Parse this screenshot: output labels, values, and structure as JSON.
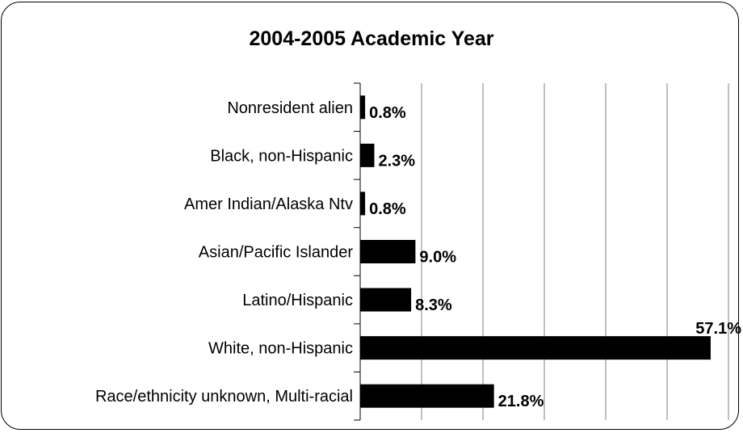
{
  "chart_data": {
    "type": "bar",
    "orientation": "horizontal",
    "title": "2004-2005 Academic Year",
    "categories": [
      "Nonresident alien",
      "Black, non-Hispanic",
      "Amer Indian/Alaska Ntv",
      "Asian/Pacific Islander",
      "Latino/Hispanic",
      "White, non-Hispanic",
      "Race/ethnicity unknown, Multi-racial"
    ],
    "values": [
      0.8,
      2.3,
      0.8,
      9.0,
      8.3,
      57.1,
      21.8
    ],
    "data_labels": [
      "0.8%",
      "2.3%",
      "0.8%",
      "9.0%",
      "8.3%",
      "57.1%",
      "21.8%"
    ],
    "xlim": [
      0,
      60
    ],
    "x_gridlines": [
      10,
      20,
      30,
      40,
      50,
      60
    ],
    "grid": "vertical",
    "bar_color": "#000000",
    "xlabel": "",
    "ylabel": ""
  }
}
